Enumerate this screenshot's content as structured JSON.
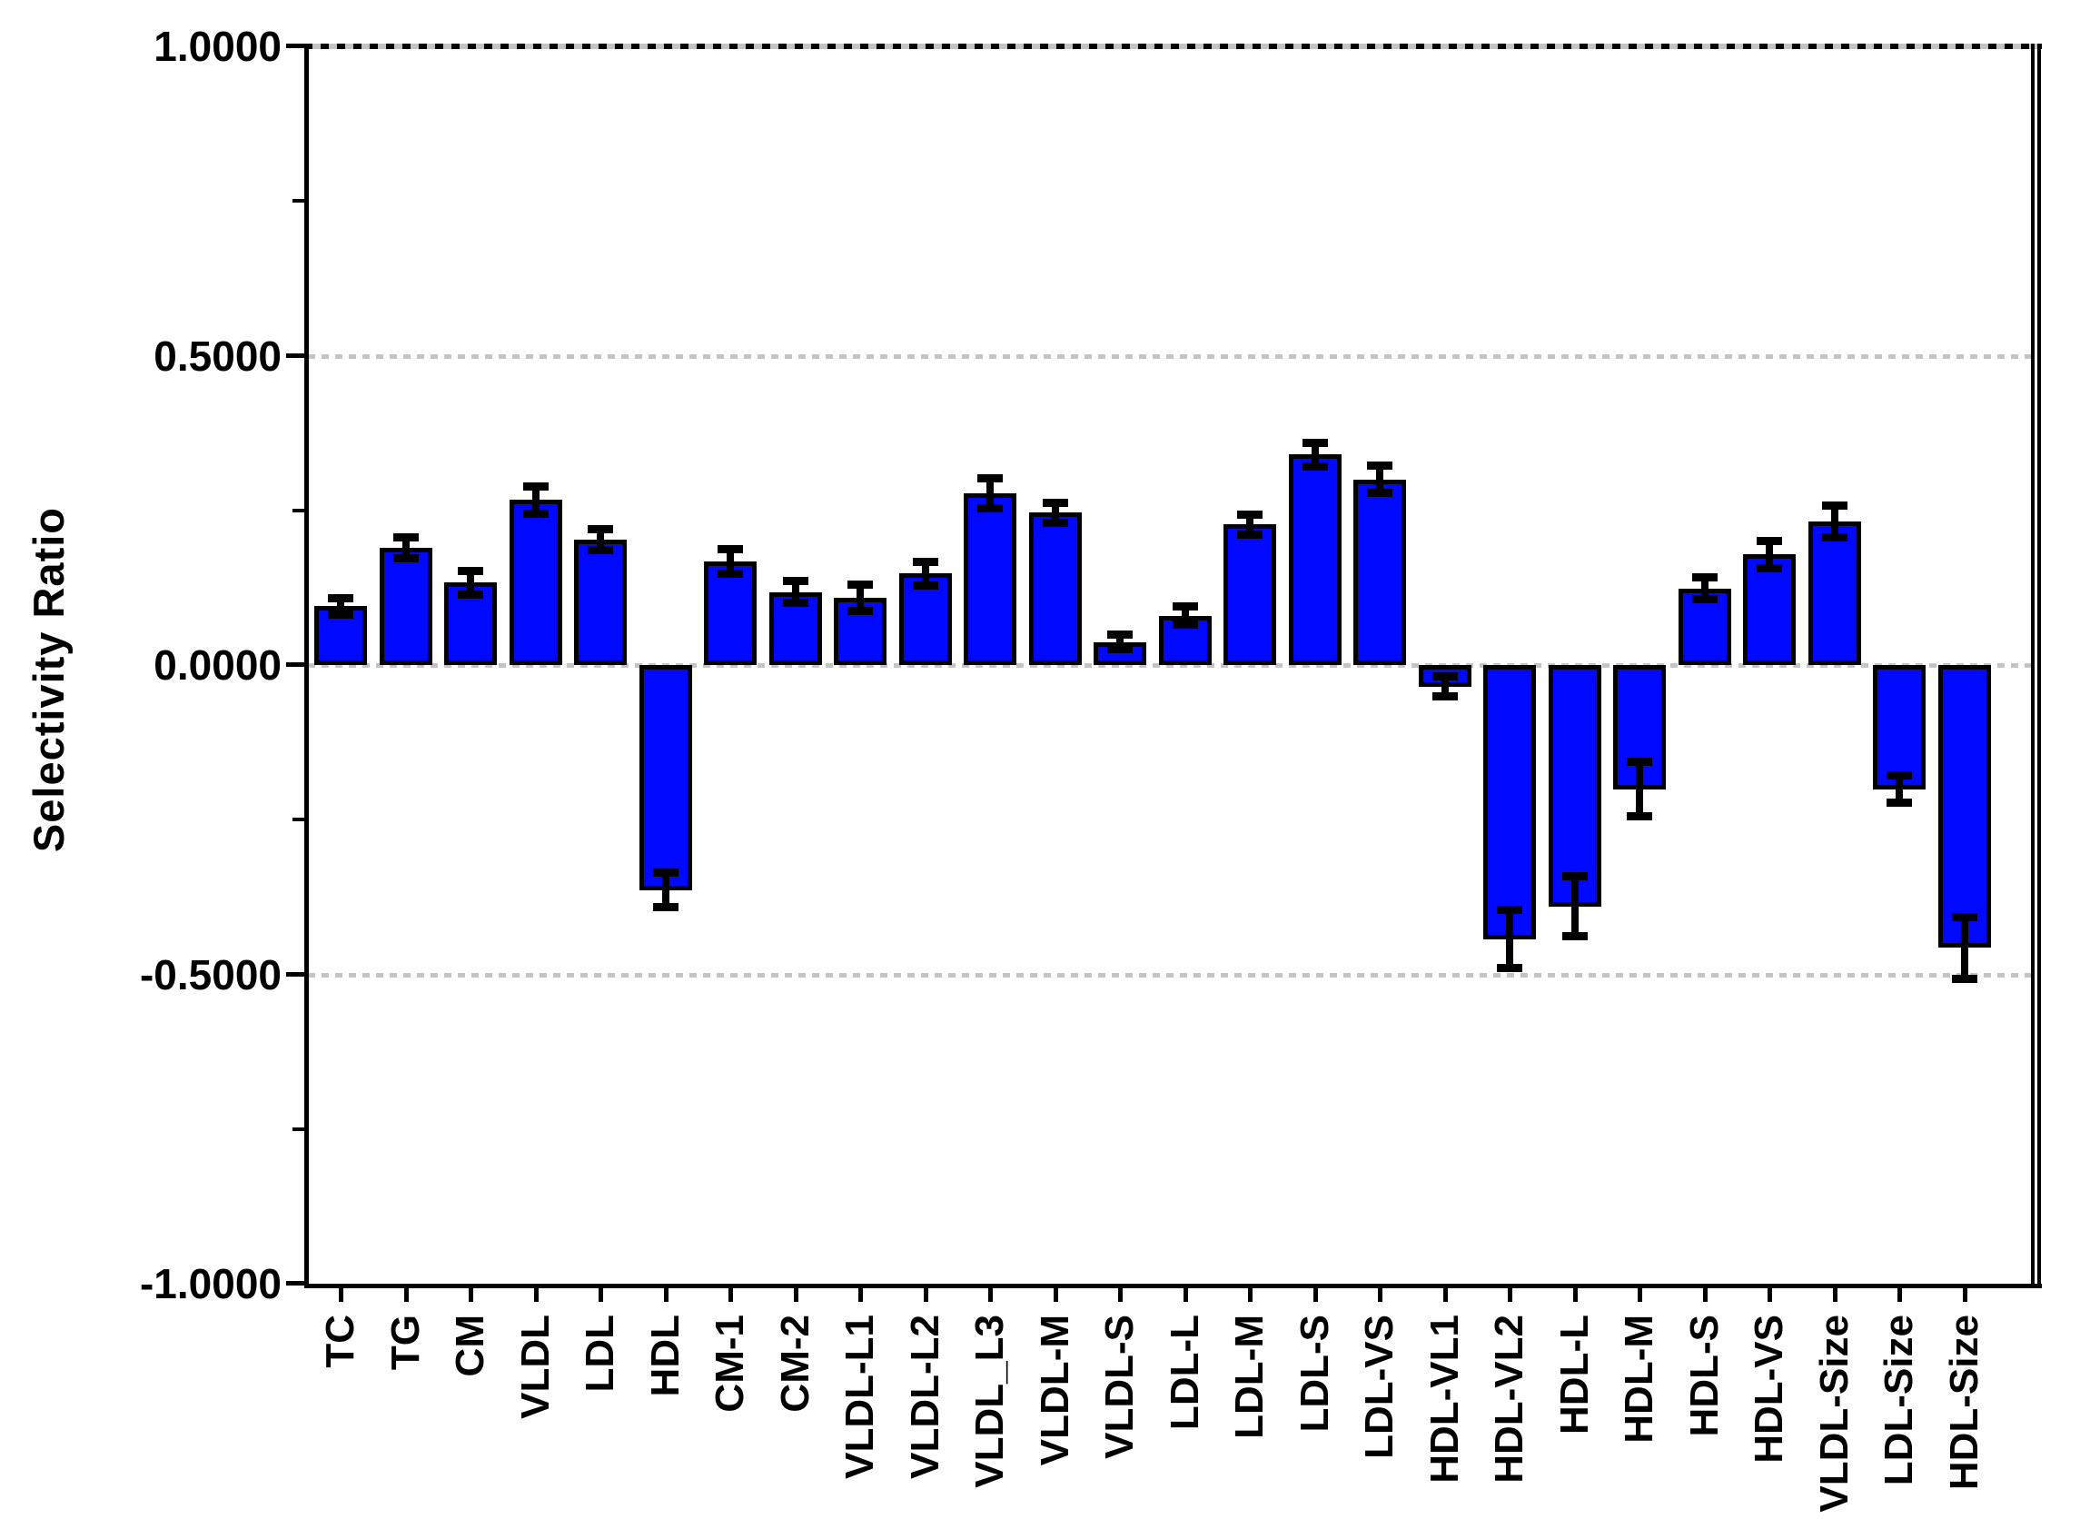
{
  "figure": {
    "background": "#ffffff",
    "colors": {
      "bar_fill": "#0008ff",
      "bar_edge": "#000000",
      "error_bar": "#000000",
      "grid": "#c4c4c4",
      "frame": "#000000",
      "text": "#000000"
    }
  },
  "chart_data": {
    "type": "bar",
    "title": "",
    "xlabel": "",
    "ylabel": "Selectivity Ratio",
    "ylim": [
      -1.0,
      1.0
    ],
    "grid": "horizontal-dashed",
    "legend": "none",
    "y_ticks": [
      {
        "label": "1.0000",
        "value": 1.0
      },
      {
        "label": "0.5000",
        "value": 0.5
      },
      {
        "label": "0.0000",
        "value": 0.0
      },
      {
        "label": "-0.5000",
        "value": -0.5
      },
      {
        "label": "-1.0000",
        "value": -1.0
      }
    ],
    "y_minor_ticks": [
      0.75,
      0.25,
      -0.25,
      -0.75
    ],
    "gridline_values": [
      0.5,
      0.0,
      -0.5
    ],
    "categories": [
      "TC",
      "TG",
      "CM",
      "VLDL",
      "LDL",
      "HDL",
      "CM-1",
      "CM-2",
      "VLDL-L1",
      "VLDL-L2",
      "VLDL_L3",
      "VLDL-M",
      "VLDL-S",
      "LDL-L",
      "LDL-M",
      "LDL-S",
      "LDL-VS",
      "HDL-VL1",
      "HDL-VL2",
      "HDL-L",
      "HDL-M",
      "HDL-S",
      "HDL-VS",
      "VLDL-Size",
      "LDL-Size",
      "HDL-Size"
    ],
    "values": [
      0.095,
      0.189,
      0.133,
      0.267,
      0.203,
      -0.364,
      0.167,
      0.118,
      0.109,
      0.148,
      0.278,
      0.246,
      0.037,
      0.08,
      0.227,
      0.34,
      0.3,
      -0.035,
      -0.443,
      -0.39,
      -0.201,
      0.124,
      0.179,
      0.232,
      -0.201,
      -0.457
    ],
    "errors": [
      0.013,
      0.017,
      0.019,
      0.022,
      0.017,
      0.028,
      0.02,
      0.018,
      0.021,
      0.019,
      0.024,
      0.016,
      0.012,
      0.015,
      0.016,
      0.019,
      0.022,
      0.016,
      0.047,
      0.048,
      0.044,
      0.018,
      0.022,
      0.025,
      0.022,
      0.05
    ],
    "error_bar_style": "symmetric-caps"
  }
}
